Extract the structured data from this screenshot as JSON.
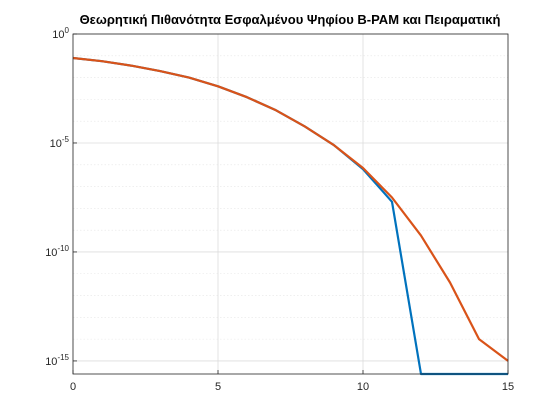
{
  "chart_data": {
    "type": "line",
    "title": "Θεωρητική Πιθανότητα Εσφαλμένου Ψηφίου B-PAM και Πειραματική",
    "xlabel": "",
    "ylabel": "",
    "xlim": [
      0,
      15
    ],
    "ylim_log10": [
      -15.6,
      0
    ],
    "yscale": "log",
    "grid": true,
    "x_ticks": [
      0,
      5,
      10,
      15
    ],
    "y_ticks": [
      {
        "base": "10",
        "exp": "0",
        "log10": 0
      },
      {
        "base": "10",
        "exp": "-5",
        "log10": -5
      },
      {
        "base": "10",
        "exp": "-10",
        "log10": -10
      },
      {
        "base": "10",
        "exp": "-15",
        "log10": -15
      }
    ],
    "series": [
      {
        "color": "#0072BD",
        "x": [
          0,
          1,
          2,
          3,
          4,
          5,
          6,
          7,
          8,
          9,
          10,
          11,
          12,
          13,
          14,
          15
        ],
        "log10_y": [
          -1.1,
          -1.25,
          -1.45,
          -1.7,
          -2.0,
          -2.4,
          -2.9,
          -3.5,
          -4.25,
          -5.1,
          -6.2,
          -7.7,
          -15.6,
          -15.6,
          -15.6,
          -15.6
        ]
      },
      {
        "color": "#D95319",
        "x": [
          0,
          1,
          2,
          3,
          4,
          5,
          6,
          7,
          8,
          9,
          10,
          11,
          12,
          13,
          14,
          15
        ],
        "log10_y": [
          -1.1,
          -1.25,
          -1.45,
          -1.7,
          -2.0,
          -2.4,
          -2.9,
          -3.5,
          -4.25,
          -5.1,
          -6.15,
          -7.5,
          -9.25,
          -11.4,
          -14.0,
          -15.0
        ]
      }
    ]
  }
}
